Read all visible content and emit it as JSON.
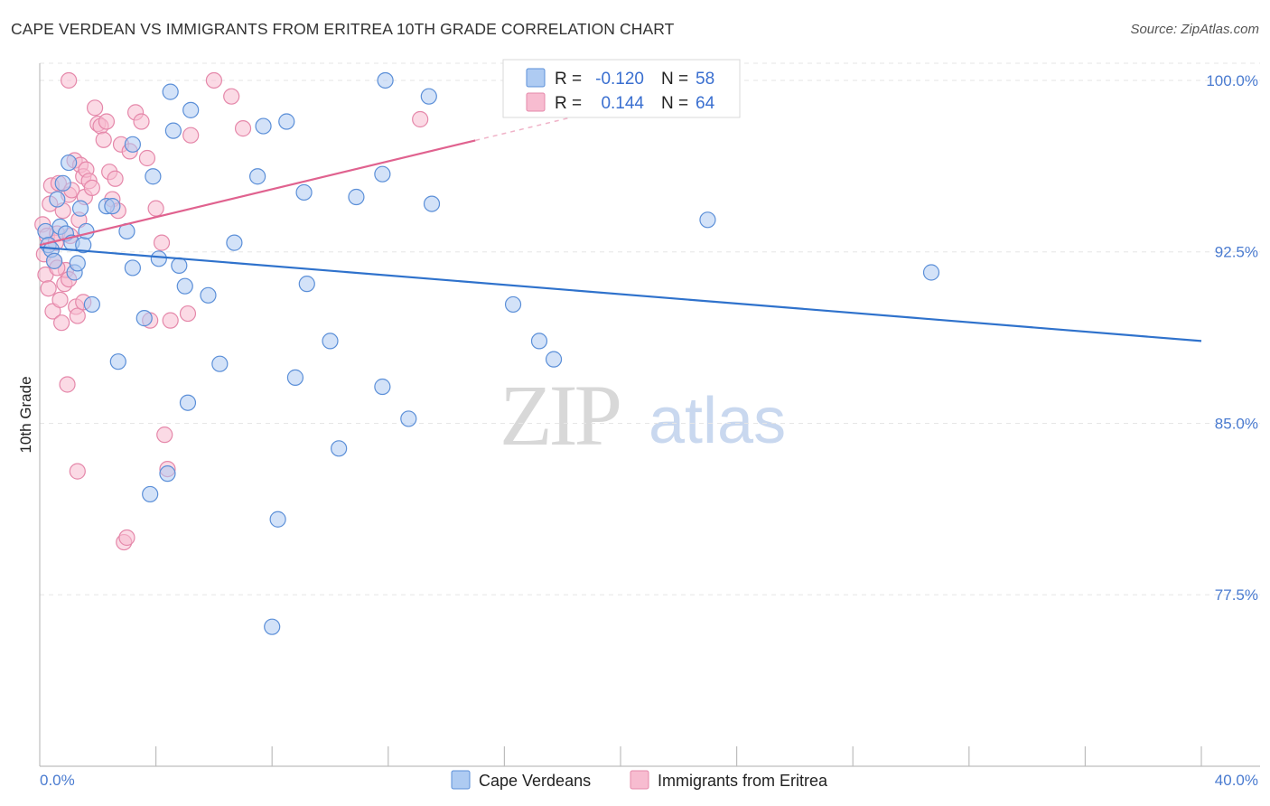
{
  "header": {
    "title": "CAPE VERDEAN VS IMMIGRANTS FROM ERITREA 10TH GRADE CORRELATION CHART",
    "source": "Source: ZipAtlas.com"
  },
  "colors": {
    "blue_fill": "#aecbf2",
    "blue_stroke": "#5b8fd8",
    "blue_line": "#2f72cc",
    "pink_fill": "#f7bcd0",
    "pink_stroke": "#e588aa",
    "pink_line": "#e0628f",
    "grid": "#e6e6e6",
    "tick_label": "#4a7bd0"
  },
  "watermark": {
    "zip": "ZIP",
    "atlas": "atlas"
  },
  "legend_top": {
    "rows": [
      {
        "r_label": "R =",
        "r_value": "-0.120",
        "n_label": "N =",
        "n_value": "58"
      },
      {
        "r_label": "R =",
        "r_value": "0.144",
        "n_label": "N =",
        "n_value": "64"
      }
    ]
  },
  "legend_bottom": [
    "Cape Verdeans",
    "Immigrants from Eritrea"
  ],
  "chart_data": {
    "type": "scatter",
    "title": "CAPE VERDEAN VS IMMIGRANTS FROM ERITREA 10TH GRADE CORRELATION CHART",
    "xlabel": "",
    "ylabel": "10th Grade",
    "xlim": [
      0,
      40
    ],
    "ylim": [
      70,
      100.75
    ],
    "x_tick_labels": [
      "0.0%",
      "40.0%"
    ],
    "y_ticks": [
      77.5,
      85.0,
      92.5,
      100.0
    ],
    "y_tick_labels": [
      "77.5%",
      "85.0%",
      "92.5%",
      "100.0%"
    ],
    "x_minor_ticks": [
      4,
      8,
      12,
      16,
      20,
      24,
      28,
      32,
      36,
      40
    ],
    "series": [
      {
        "name": "Cape Verdeans",
        "R": -0.12,
        "N": 58,
        "trend": {
          "x": [
            0,
            40
          ],
          "y": [
            92.7,
            88.6
          ],
          "dashed_from": null
        },
        "points": [
          [
            0.2,
            93.4
          ],
          [
            0.3,
            92.8
          ],
          [
            0.4,
            92.6
          ],
          [
            0.5,
            92.1
          ],
          [
            0.6,
            94.8
          ],
          [
            0.7,
            93.6
          ],
          [
            0.8,
            95.5
          ],
          [
            0.9,
            93.3
          ],
          [
            1.0,
            96.4
          ],
          [
            1.1,
            92.9
          ],
          [
            1.2,
            91.6
          ],
          [
            1.3,
            92.0
          ],
          [
            1.4,
            94.4
          ],
          [
            1.5,
            92.8
          ],
          [
            1.6,
            93.4
          ],
          [
            1.8,
            90.2
          ],
          [
            2.3,
            94.5
          ],
          [
            2.5,
            94.5
          ],
          [
            2.7,
            87.7
          ],
          [
            3.0,
            93.4
          ],
          [
            3.2,
            91.8
          ],
          [
            3.2,
            97.2
          ],
          [
            3.6,
            89.6
          ],
          [
            3.8,
            81.9
          ],
          [
            3.9,
            95.8
          ],
          [
            4.1,
            92.2
          ],
          [
            4.4,
            82.8
          ],
          [
            4.5,
            99.5
          ],
          [
            4.6,
            97.8
          ],
          [
            4.8,
            91.9
          ],
          [
            5.0,
            91.0
          ],
          [
            5.1,
            85.9
          ],
          [
            5.2,
            98.7
          ],
          [
            5.8,
            90.6
          ],
          [
            6.2,
            87.6
          ],
          [
            6.7,
            92.9
          ],
          [
            7.5,
            95.8
          ],
          [
            7.7,
            98.0
          ],
          [
            8.0,
            76.1
          ],
          [
            8.2,
            80.8
          ],
          [
            8.5,
            98.2
          ],
          [
            8.8,
            87.0
          ],
          [
            9.1,
            95.1
          ],
          [
            9.2,
            91.1
          ],
          [
            10.0,
            88.6
          ],
          [
            10.3,
            83.9
          ],
          [
            10.9,
            94.9
          ],
          [
            11.8,
            86.6
          ],
          [
            11.8,
            95.9
          ],
          [
            11.9,
            100.0
          ],
          [
            12.7,
            85.2
          ],
          [
            13.4,
            99.3
          ],
          [
            13.5,
            94.6
          ],
          [
            16.3,
            90.2
          ],
          [
            17.2,
            88.6
          ],
          [
            17.7,
            87.8
          ],
          [
            23.0,
            93.9
          ],
          [
            30.7,
            91.6
          ]
        ]
      },
      {
        "name": "Immigrants from Eritrea",
        "R": 0.144,
        "N": 64,
        "trend": {
          "x": [
            0,
            40
          ],
          "y": [
            92.8,
            105.0
          ],
          "dashed_from": 15.0
        },
        "points": [
          [
            0.1,
            93.7
          ],
          [
            0.15,
            92.4
          ],
          [
            0.2,
            91.5
          ],
          [
            0.25,
            93.2
          ],
          [
            0.3,
            90.9
          ],
          [
            0.35,
            94.6
          ],
          [
            0.4,
            95.4
          ],
          [
            0.45,
            89.9
          ],
          [
            0.5,
            92.1
          ],
          [
            0.55,
            92.9
          ],
          [
            0.6,
            93.3
          ],
          [
            0.65,
            95.5
          ],
          [
            0.7,
            90.4
          ],
          [
            0.75,
            89.4
          ],
          [
            0.8,
            94.3
          ],
          [
            0.85,
            91.1
          ],
          [
            0.9,
            91.7
          ],
          [
            0.95,
            86.7
          ],
          [
            1.0,
            95.0
          ],
          [
            1.05,
            93.2
          ],
          [
            1.1,
            95.2
          ],
          [
            1.2,
            96.5
          ],
          [
            1.25,
            90.1
          ],
          [
            1.3,
            89.7
          ],
          [
            1.35,
            93.9
          ],
          [
            1.4,
            96.3
          ],
          [
            1.5,
            95.8
          ],
          [
            1.55,
            94.9
          ],
          [
            1.6,
            96.1
          ],
          [
            1.7,
            95.6
          ],
          [
            1.8,
            95.3
          ],
          [
            1.9,
            98.8
          ],
          [
            2.0,
            98.1
          ],
          [
            2.1,
            98.0
          ],
          [
            2.2,
            97.4
          ],
          [
            2.3,
            98.2
          ],
          [
            2.4,
            96.0
          ],
          [
            2.5,
            94.8
          ],
          [
            2.6,
            95.7
          ],
          [
            2.7,
            94.3
          ],
          [
            2.8,
            97.2
          ],
          [
            2.9,
            79.8
          ],
          [
            3.0,
            80.0
          ],
          [
            3.1,
            96.9
          ],
          [
            3.3,
            98.6
          ],
          [
            3.5,
            98.2
          ],
          [
            3.7,
            96.6
          ],
          [
            3.8,
            89.5
          ],
          [
            4.0,
            94.4
          ],
          [
            4.2,
            92.9
          ],
          [
            4.3,
            84.5
          ],
          [
            4.4,
            83.0
          ],
          [
            4.5,
            89.5
          ],
          [
            5.1,
            89.8
          ],
          [
            5.2,
            97.6
          ],
          [
            6.0,
            100.0
          ],
          [
            6.6,
            99.3
          ],
          [
            7.0,
            97.9
          ],
          [
            13.1,
            98.3
          ],
          [
            1.0,
            100.0
          ],
          [
            1.3,
            82.9
          ],
          [
            0.6,
            91.8
          ],
          [
            1.0,
            91.3
          ],
          [
            1.5,
            90.3
          ]
        ]
      }
    ]
  }
}
